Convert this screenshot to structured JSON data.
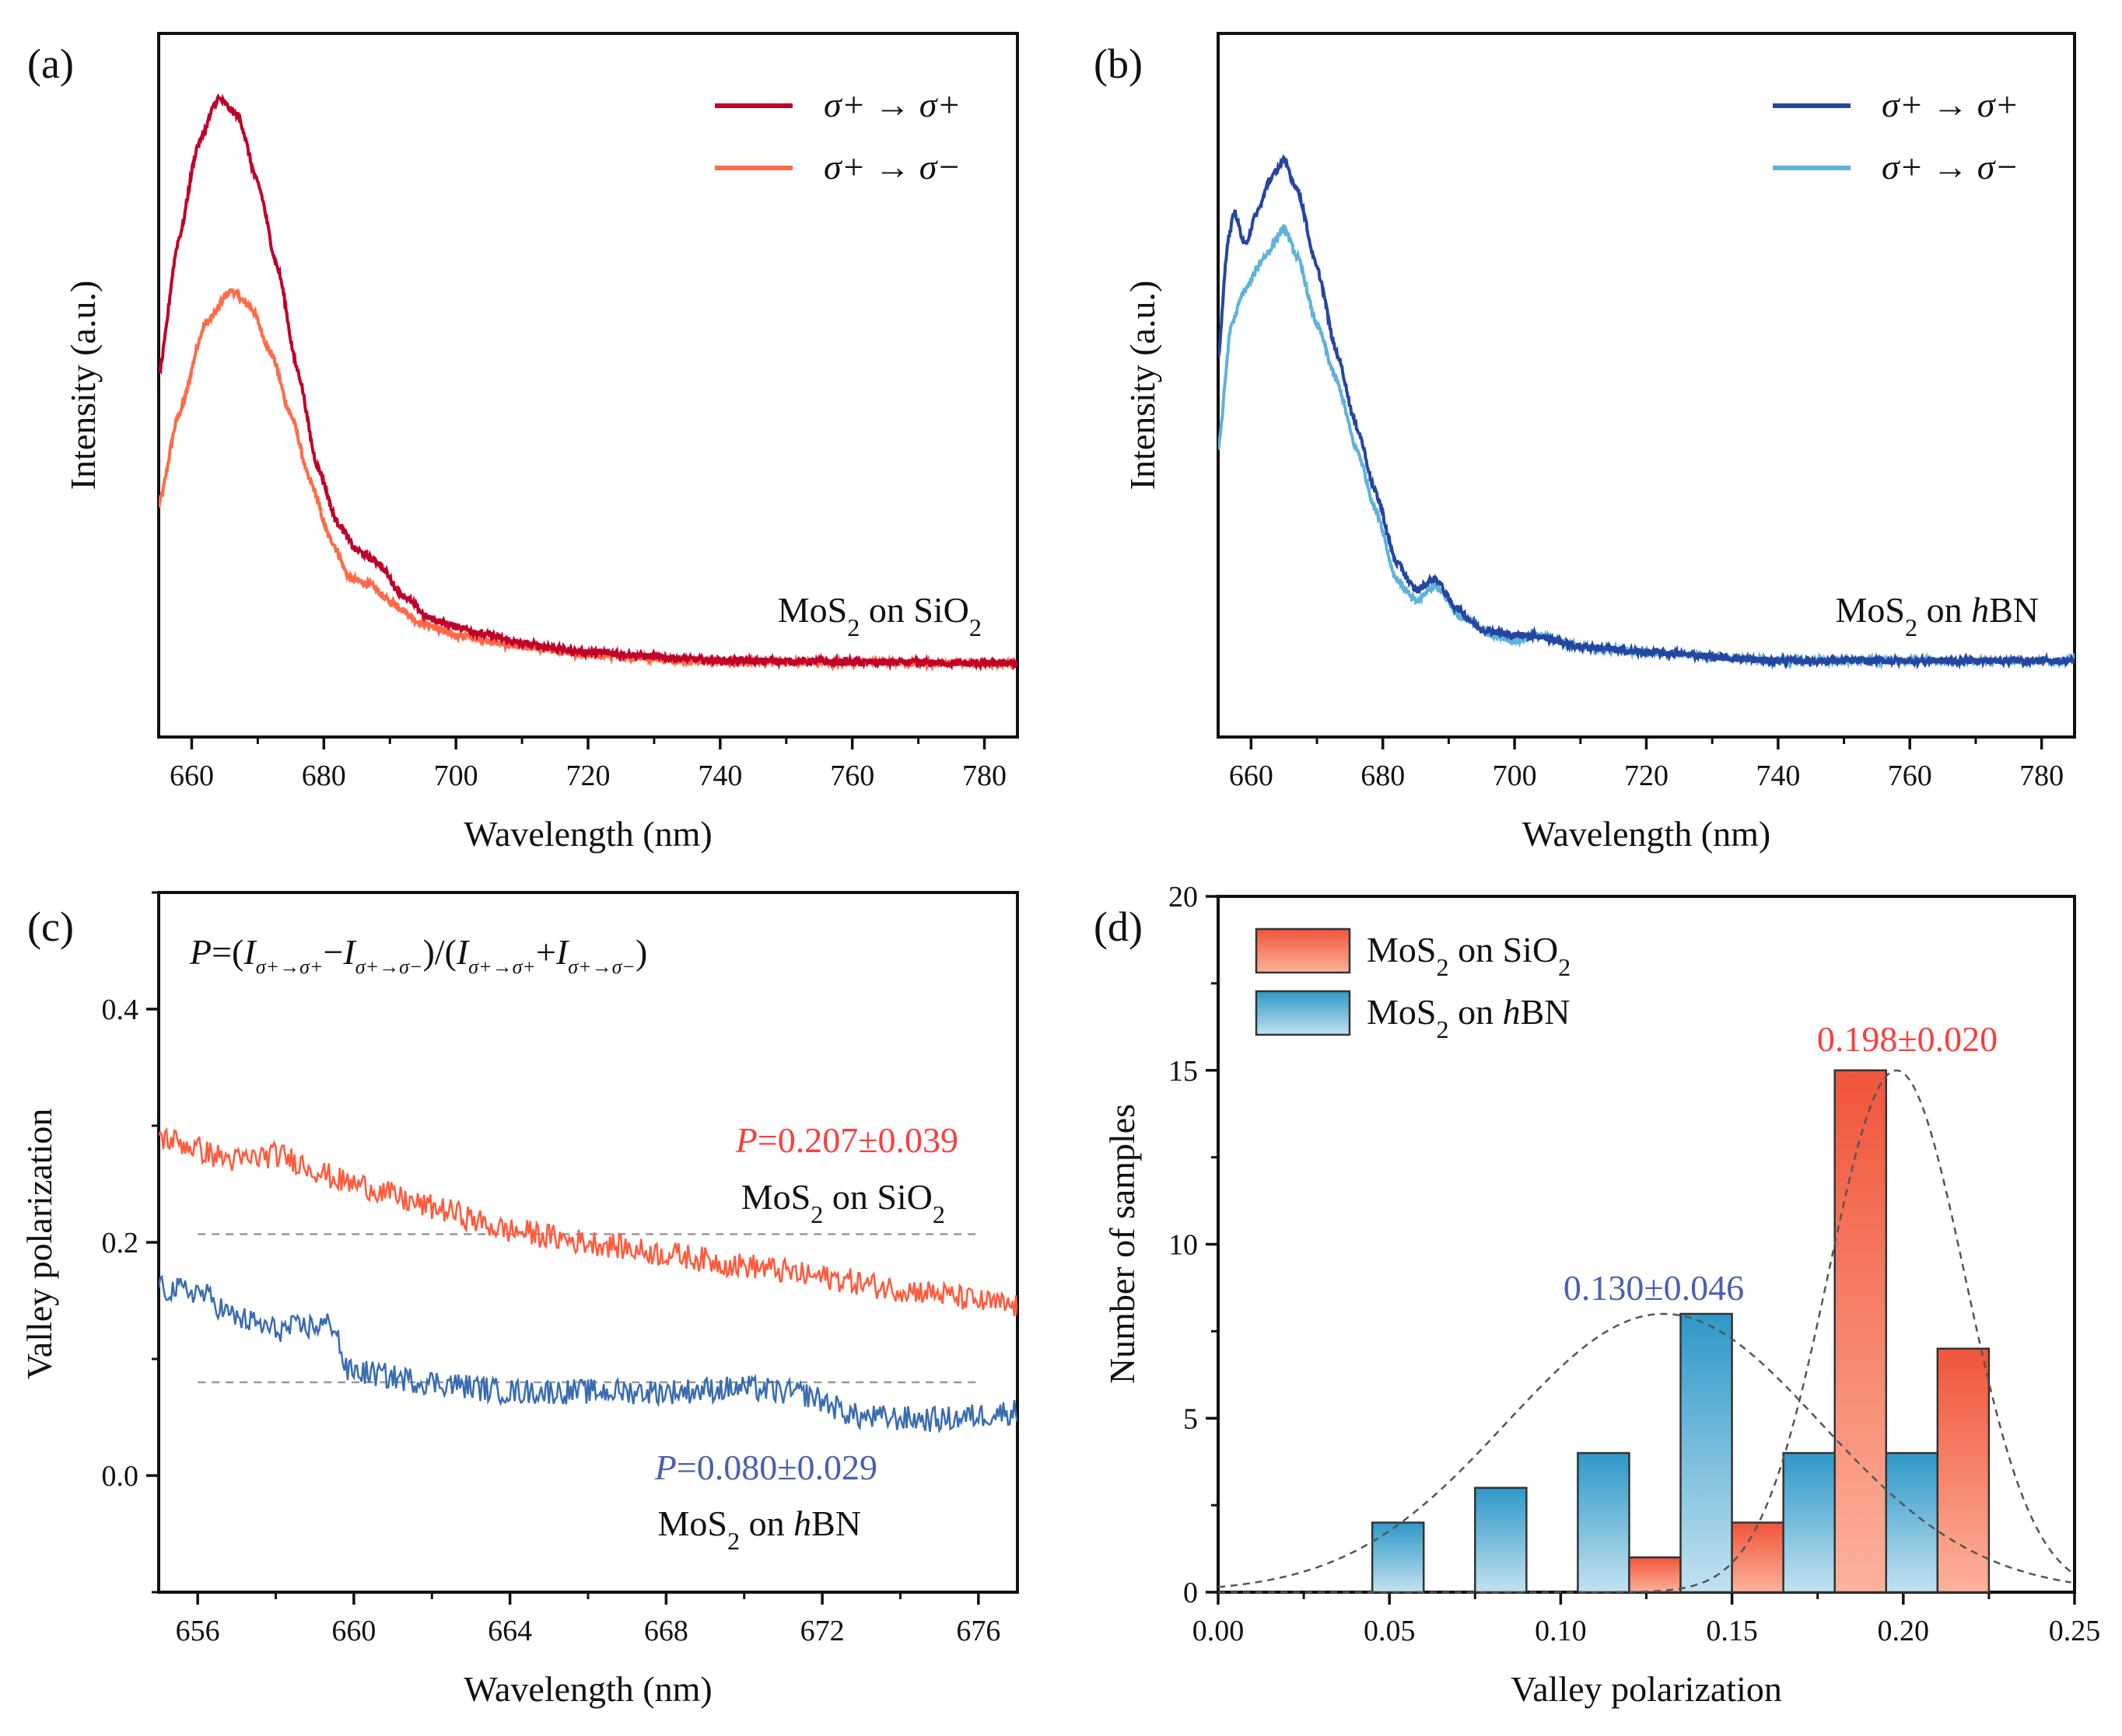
{
  "chart_data": [
    {
      "panel": "(a)",
      "type": "line",
      "xlabel": "Wavelength (nm)",
      "ylabel": "Intensity (a.u.)",
      "xlim": [
        655,
        785
      ],
      "ylim": [
        -0.13,
        1.115
      ],
      "xticks": [
        660,
        680,
        700,
        720,
        740,
        760,
        780
      ],
      "yticks_labeled": false,
      "annotation": [
        "MoS",
        "2",
        " on SiO",
        "2"
      ],
      "series": [
        {
          "name": "σ+ → σ+",
          "color": "#c0002a",
          "points": [
            [
              655,
              0.51
            ],
            [
              658,
              0.75
            ],
            [
              661,
              0.92
            ],
            [
              664,
              1.0
            ],
            [
              667,
              0.97
            ],
            [
              670,
              0.85
            ],
            [
              673,
              0.7
            ],
            [
              676,
              0.52
            ],
            [
              679,
              0.35
            ],
            [
              682,
              0.25
            ],
            [
              685,
              0.2
            ],
            [
              688,
              0.18
            ],
            [
              692,
              0.12
            ],
            [
              696,
              0.08
            ],
            [
              700,
              0.065
            ],
            [
              705,
              0.05
            ],
            [
              710,
              0.035
            ],
            [
              720,
              0.02
            ],
            [
              740,
              0.005
            ],
            [
              785,
              0
            ]
          ]
        },
        {
          "name": "σ+ → σ−",
          "color": "#ff6a48",
          "points": [
            [
              655,
              0.28
            ],
            [
              658,
              0.44
            ],
            [
              662,
              0.6
            ],
            [
              666,
              0.66
            ],
            [
              669,
              0.63
            ],
            [
              672,
              0.55
            ],
            [
              675,
              0.44
            ],
            [
              678,
              0.32
            ],
            [
              681,
              0.22
            ],
            [
              684,
              0.15
            ],
            [
              687,
              0.14
            ],
            [
              690,
              0.11
            ],
            [
              695,
              0.07
            ],
            [
              700,
              0.05
            ],
            [
              710,
              0.03
            ],
            [
              720,
              0.015
            ],
            [
              740,
              0.003
            ],
            [
              785,
              0
            ]
          ]
        }
      ]
    },
    {
      "panel": "(b)",
      "type": "line",
      "xlabel": "Wavelength (nm)",
      "ylabel": "Intensity (a.u.)",
      "xlim": [
        655,
        785
      ],
      "ylim": [
        -0.13,
        1.115
      ],
      "xticks": [
        660,
        680,
        700,
        720,
        740,
        760,
        780
      ],
      "yticks_labeled": false,
      "annotation": [
        "MoS",
        "2",
        " on ",
        "h",
        "BN"
      ],
      "series": [
        {
          "name": "σ+ → σ+",
          "color": "#2546a0",
          "points": [
            [
              655,
              0.54
            ],
            [
              656.5,
              0.75
            ],
            [
              657.5,
              0.8
            ],
            [
              659,
              0.74
            ],
            [
              661,
              0.8
            ],
            [
              663,
              0.86
            ],
            [
              665,
              0.89
            ],
            [
              667,
              0.84
            ],
            [
              670,
              0.7
            ],
            [
              673,
              0.55
            ],
            [
              676,
              0.42
            ],
            [
              679,
              0.3
            ],
            [
              682,
              0.18
            ],
            [
              685,
              0.13
            ],
            [
              688,
              0.15
            ],
            [
              691,
              0.1
            ],
            [
              695,
              0.06
            ],
            [
              700,
              0.05
            ],
            [
              703,
              0.05
            ],
            [
              710,
              0.03
            ],
            [
              720,
              0.02
            ],
            [
              740,
              0.005
            ],
            [
              785,
              0.005
            ]
          ]
        },
        {
          "name": "σ+ → σ−",
          "color": "#5fb2da",
          "points": [
            [
              655,
              0.38
            ],
            [
              657,
              0.6
            ],
            [
              659,
              0.66
            ],
            [
              662,
              0.72
            ],
            [
              665,
              0.77
            ],
            [
              667,
              0.72
            ],
            [
              670,
              0.6
            ],
            [
              673,
              0.5
            ],
            [
              676,
              0.38
            ],
            [
              679,
              0.27
            ],
            [
              682,
              0.15
            ],
            [
              685,
              0.11
            ],
            [
              688,
              0.14
            ],
            [
              692,
              0.08
            ],
            [
              697,
              0.05
            ],
            [
              700,
              0.04
            ],
            [
              703,
              0.05
            ],
            [
              710,
              0.03
            ],
            [
              720,
              0.02
            ],
            [
              740,
              0.005
            ],
            [
              785,
              0.005
            ]
          ]
        }
      ]
    },
    {
      "panel": "(c)",
      "type": "line",
      "xlabel": "Wavelength (nm)",
      "ylabel": "Valley polarization",
      "xlim": [
        655,
        677
      ],
      "ylim": [
        -0.1,
        0.5
      ],
      "xticks": [
        656,
        660,
        664,
        668,
        672,
        676
      ],
      "yticks": [
        0.0,
        0.2,
        0.4
      ],
      "formula": [
        {
          "t": "P",
          "i": true
        },
        {
          "t": "=("
        },
        {
          "t": "I",
          "i": true
        },
        {
          "t": "σ+→σ+",
          "s": true
        },
        {
          "t": "−"
        },
        {
          "t": "I",
          "i": true
        },
        {
          "t": "σ+→σ−",
          "s": true
        },
        {
          "t": ")/("
        },
        {
          "t": "I",
          "i": true
        },
        {
          "t": "σ+→σ+",
          "s": true
        },
        {
          "t": "+"
        },
        {
          "t": "I",
          "i": true
        },
        {
          "t": "σ+→σ−",
          "s": true
        },
        {
          "t": ")"
        }
      ],
      "series": [
        {
          "label": [
            "MoS",
            "2",
            " on SiO",
            "2"
          ],
          "mean_text": "=0.207±0.039",
          "mean": 0.207,
          "color": "#ff5a3c",
          "text_color": "#ff3c3c",
          "points": [
            [
              655,
              0.29
            ],
            [
              657,
              0.27
            ],
            [
              658,
              0.275
            ],
            [
              660,
              0.25
            ],
            [
              662,
              0.23
            ],
            [
              664,
              0.21
            ],
            [
              666,
              0.2
            ],
            [
              668,
              0.19
            ],
            [
              670,
              0.18
            ],
            [
              672,
              0.17
            ],
            [
              674,
              0.16
            ],
            [
              677,
              0.145
            ]
          ]
        },
        {
          "label": [
            "MoS",
            "2",
            " on ",
            "h",
            "BN"
          ],
          "mean_text": "=0.080±0.029",
          "mean": 0.08,
          "color": "#3a6cb0",
          "text_color": "#4a5fb2",
          "points": [
            [
              655,
              0.16
            ],
            [
              656,
              0.158
            ],
            [
              657,
              0.135
            ],
            [
              658,
              0.125
            ],
            [
              659.5,
              0.13
            ],
            [
              659.8,
              0.09
            ],
            [
              662,
              0.08
            ],
            [
              664,
              0.072
            ],
            [
              666,
              0.072
            ],
            [
              668,
              0.072
            ],
            [
              670,
              0.075
            ],
            [
              671.5,
              0.07
            ],
            [
              673,
              0.05
            ],
            [
              675,
              0.048
            ],
            [
              677,
              0.055
            ]
          ]
        }
      ],
      "mean_line_range": [
        656,
        676
      ]
    },
    {
      "panel": "(d)",
      "type": "bar",
      "xlabel": "Valley polarization",
      "ylabel": "Number of samples",
      "xlim": [
        0,
        0.25
      ],
      "ylim": [
        0,
        20
      ],
      "xticks": [
        0.0,
        0.05,
        0.1,
        0.15,
        0.2,
        0.25
      ],
      "yticks": [
        0,
        5,
        10,
        15,
        20
      ],
      "bin_width": 0.015,
      "series": [
        {
          "name": [
            "MoS",
            "2",
            " on SiO",
            "2"
          ],
          "fit_text": "0.198±0.020",
          "mean": 0.198,
          "sigma": 0.02,
          "peak": 15,
          "colors": [
            "#f0553a",
            "#fcb29c"
          ],
          "text_color": "#ff3c3c",
          "bin_centers": [
            0.1275,
            0.1575,
            0.1875,
            0.2175
          ],
          "counts": [
            1,
            2,
            15,
            7
          ]
        },
        {
          "name": [
            "MoS",
            "2",
            " on ",
            "h",
            "BN"
          ],
          "fit_text": "0.130±0.046",
          "mean": 0.13,
          "sigma": 0.046,
          "peak": 8,
          "colors": [
            "#2e98c8",
            "#c2e2f0"
          ],
          "text_color": "#4a5fb2",
          "bin_centers": [
            0.0525,
            0.0825,
            0.1125,
            0.1425,
            0.1725,
            0.2025
          ],
          "counts": [
            2,
            3,
            4,
            8,
            4,
            4
          ]
        }
      ]
    }
  ]
}
